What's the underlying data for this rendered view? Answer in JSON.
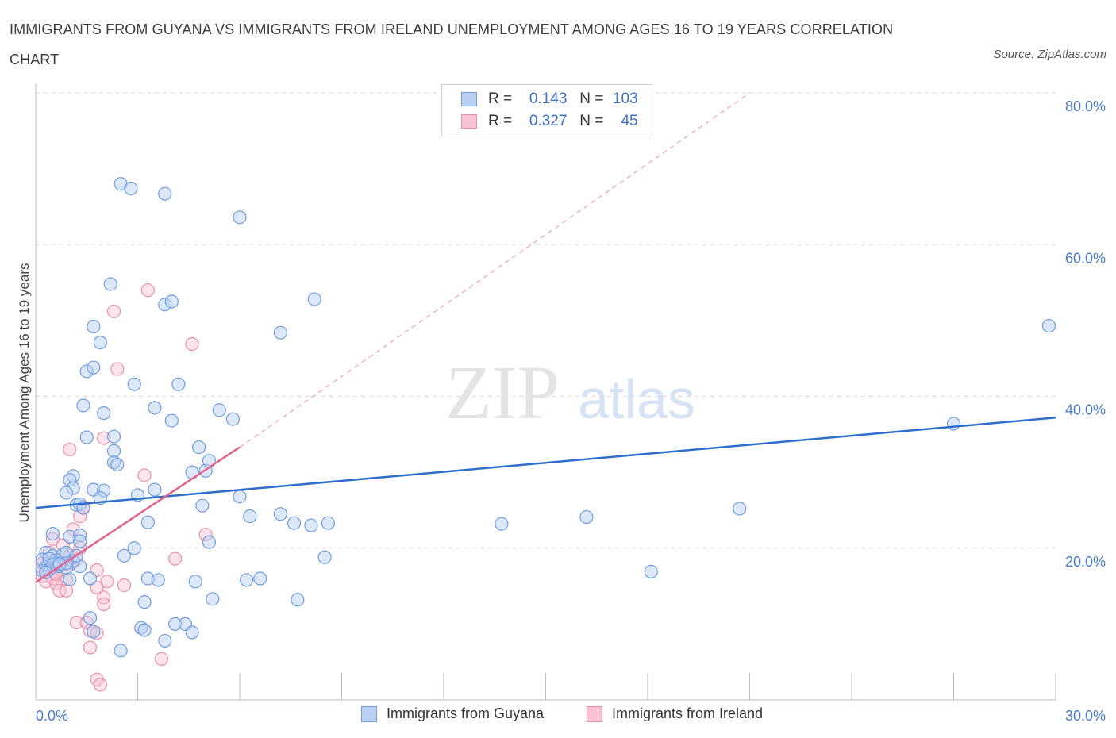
{
  "title": "IMMIGRANTS FROM GUYANA VS IMMIGRANTS FROM IRELAND UNEMPLOYMENT AMONG AGES 16 TO 19 YEARS CORRELATION CHART",
  "source": "Source: ZipAtlas.com",
  "watermark": {
    "zip": "ZIP",
    "atlas": "atlas"
  },
  "legend": {
    "guyana": {
      "r_label": "R =",
      "r_value": "0.143",
      "n_label": "N =",
      "n_value": "103"
    },
    "ireland": {
      "r_label": "R =",
      "r_value": "0.327",
      "n_label": "N =",
      "n_value": "45"
    }
  },
  "colors": {
    "guyana_fill": "#b9d0f2",
    "guyana_stroke": "#6f9ee0",
    "guyana_line": "#2e6fcb",
    "ireland_fill": "#f8c4d4",
    "ireland_stroke": "#ec8fab",
    "ireland_line": "#e0628e",
    "tick_text": "#4b7cc9",
    "grid": "#dcdcdc"
  },
  "chart_data": {
    "type": "scatter",
    "xlabel": "",
    "ylabel": "Unemployment Among Ages 16 to 19 years",
    "xlim": [
      0,
      30
    ],
    "ylim": [
      0,
      80
    ],
    "x_tick_labels": [
      "0.0%",
      "30.0%"
    ],
    "y_ticks": [
      20,
      40,
      60,
      80
    ],
    "y_tick_labels": [
      "20.0%",
      "40.0%",
      "60.0%",
      "80.0%"
    ],
    "grid": true,
    "legend_position": "top-center",
    "series": [
      {
        "name": "Immigrants from Guyana",
        "regression": {
          "x": [
            0,
            30
          ],
          "y": [
            25.3,
            37.2
          ]
        },
        "points": [
          [
            2.5,
            68
          ],
          [
            2.8,
            67.4
          ],
          [
            3.8,
            66.7
          ],
          [
            6.0,
            63.6
          ],
          [
            2.2,
            54.8
          ],
          [
            8.2,
            52.8
          ],
          [
            3.8,
            52.1
          ],
          [
            4.0,
            52.5
          ],
          [
            7.2,
            48.4
          ],
          [
            29.8,
            49.3
          ],
          [
            1.7,
            49.2
          ],
          [
            1.9,
            47.1
          ],
          [
            1.5,
            43.3
          ],
          [
            1.7,
            43.8
          ],
          [
            2.9,
            41.6
          ],
          [
            4.2,
            41.6
          ],
          [
            1.4,
            38.8
          ],
          [
            2.0,
            37.8
          ],
          [
            3.5,
            38.5
          ],
          [
            5.4,
            38.2
          ],
          [
            5.8,
            37.0
          ],
          [
            4.0,
            36.8
          ],
          [
            1.5,
            34.6
          ],
          [
            2.3,
            34.7
          ],
          [
            4.8,
            33.3
          ],
          [
            27.0,
            36.4
          ],
          [
            2.3,
            32.8
          ],
          [
            2.3,
            31.3
          ],
          [
            2.4,
            31.0
          ],
          [
            4.6,
            30.0
          ],
          [
            5.0,
            30.2
          ],
          [
            5.1,
            31.5
          ],
          [
            1.1,
            29.5
          ],
          [
            1.0,
            29.0
          ],
          [
            1.1,
            27.9
          ],
          [
            0.9,
            27.3
          ],
          [
            1.7,
            27.7
          ],
          [
            2.0,
            27.6
          ],
          [
            3.5,
            27.7
          ],
          [
            3.0,
            27.0
          ],
          [
            1.9,
            26.6
          ],
          [
            6.0,
            26.8
          ],
          [
            1.2,
            25.7
          ],
          [
            1.3,
            25.8
          ],
          [
            1.4,
            25.3
          ],
          [
            4.9,
            25.6
          ],
          [
            7.2,
            24.5
          ],
          [
            6.3,
            24.2
          ],
          [
            20.7,
            25.2
          ],
          [
            16.2,
            24.1
          ],
          [
            3.3,
            23.4
          ],
          [
            7.6,
            23.3
          ],
          [
            8.1,
            23.0
          ],
          [
            8.6,
            23.3
          ],
          [
            13.7,
            23.2
          ],
          [
            0.5,
            21.9
          ],
          [
            1.0,
            21.5
          ],
          [
            1.3,
            21.7
          ],
          [
            1.3,
            20.9
          ],
          [
            5.1,
            20.8
          ],
          [
            2.9,
            20.0
          ],
          [
            2.6,
            19.0
          ],
          [
            0.3,
            19.4
          ],
          [
            0.5,
            19.0
          ],
          [
            0.8,
            19.2
          ],
          [
            0.9,
            19.4
          ],
          [
            0.6,
            18.4
          ],
          [
            0.2,
            18.5
          ],
          [
            0.3,
            17.5
          ],
          [
            0.7,
            17.6
          ],
          [
            0.2,
            17.0
          ],
          [
            0.4,
            17.2
          ],
          [
            0.9,
            17.4
          ],
          [
            1.3,
            17.6
          ],
          [
            0.6,
            18.0
          ],
          [
            0.4,
            18.6
          ],
          [
            1.1,
            18.3
          ],
          [
            1.2,
            19.0
          ],
          [
            0.9,
            18.0
          ],
          [
            0.5,
            17.8
          ],
          [
            8.5,
            18.8
          ],
          [
            18.1,
            16.9
          ],
          [
            1.0,
            15.9
          ],
          [
            1.6,
            16.0
          ],
          [
            3.3,
            16.0
          ],
          [
            3.6,
            15.8
          ],
          [
            4.7,
            15.6
          ],
          [
            6.2,
            15.8
          ],
          [
            6.6,
            16.0
          ],
          [
            5.2,
            13.3
          ],
          [
            3.2,
            12.9
          ],
          [
            7.7,
            13.2
          ],
          [
            1.6,
            10.8
          ],
          [
            3.1,
            9.5
          ],
          [
            3.2,
            9.2
          ],
          [
            4.1,
            10.0
          ],
          [
            4.4,
            10.0
          ],
          [
            4.6,
            8.9
          ],
          [
            3.8,
            7.8
          ],
          [
            2.5,
            6.5
          ],
          [
            1.7,
            9.0
          ],
          [
            0.3,
            16.8
          ],
          [
            0.7,
            17.9
          ]
        ]
      },
      {
        "name": "Immigrants from Ireland",
        "regression": {
          "x": [
            0,
            6.0
          ],
          "y": [
            15.5,
            33.3
          ]
        },
        "regression_extension": {
          "x": [
            6.0,
            21.0
          ],
          "y": [
            33.3,
            80.0
          ]
        },
        "points": [
          [
            3.3,
            54.0
          ],
          [
            2.3,
            51.2
          ],
          [
            4.6,
            46.9
          ],
          [
            2.4,
            43.6
          ],
          [
            2.0,
            34.5
          ],
          [
            1.0,
            33.0
          ],
          [
            3.2,
            29.6
          ],
          [
            1.4,
            25.4
          ],
          [
            1.3,
            24.2
          ],
          [
            1.1,
            22.5
          ],
          [
            5.0,
            21.8
          ],
          [
            0.5,
            21.2
          ],
          [
            1.3,
            20.0
          ],
          [
            0.8,
            20.4
          ],
          [
            0.4,
            19.4
          ],
          [
            1.0,
            19.0
          ],
          [
            1.2,
            18.5
          ],
          [
            4.1,
            18.6
          ],
          [
            0.2,
            18.0
          ],
          [
            0.6,
            17.6
          ],
          [
            1.0,
            17.8
          ],
          [
            0.3,
            17.0
          ],
          [
            0.6,
            16.8
          ],
          [
            1.8,
            17.1
          ],
          [
            0.2,
            16.3
          ],
          [
            0.5,
            16.0
          ],
          [
            0.9,
            15.9
          ],
          [
            0.3,
            15.6
          ],
          [
            0.6,
            15.3
          ],
          [
            2.1,
            15.6
          ],
          [
            2.6,
            15.1
          ],
          [
            1.8,
            14.8
          ],
          [
            0.7,
            14.4
          ],
          [
            0.9,
            14.4
          ],
          [
            2.0,
            13.5
          ],
          [
            2.0,
            12.6
          ],
          [
            1.2,
            10.2
          ],
          [
            1.5,
            10.2
          ],
          [
            1.6,
            9.1
          ],
          [
            1.8,
            8.8
          ],
          [
            1.6,
            6.9
          ],
          [
            3.7,
            5.4
          ],
          [
            1.8,
            2.7
          ],
          [
            1.9,
            2.0
          ],
          [
            0.6,
            16.6
          ]
        ]
      }
    ]
  },
  "bottom_legend": {
    "guyana": "Immigrants from Guyana",
    "ireland": "Immigrants from Ireland"
  }
}
